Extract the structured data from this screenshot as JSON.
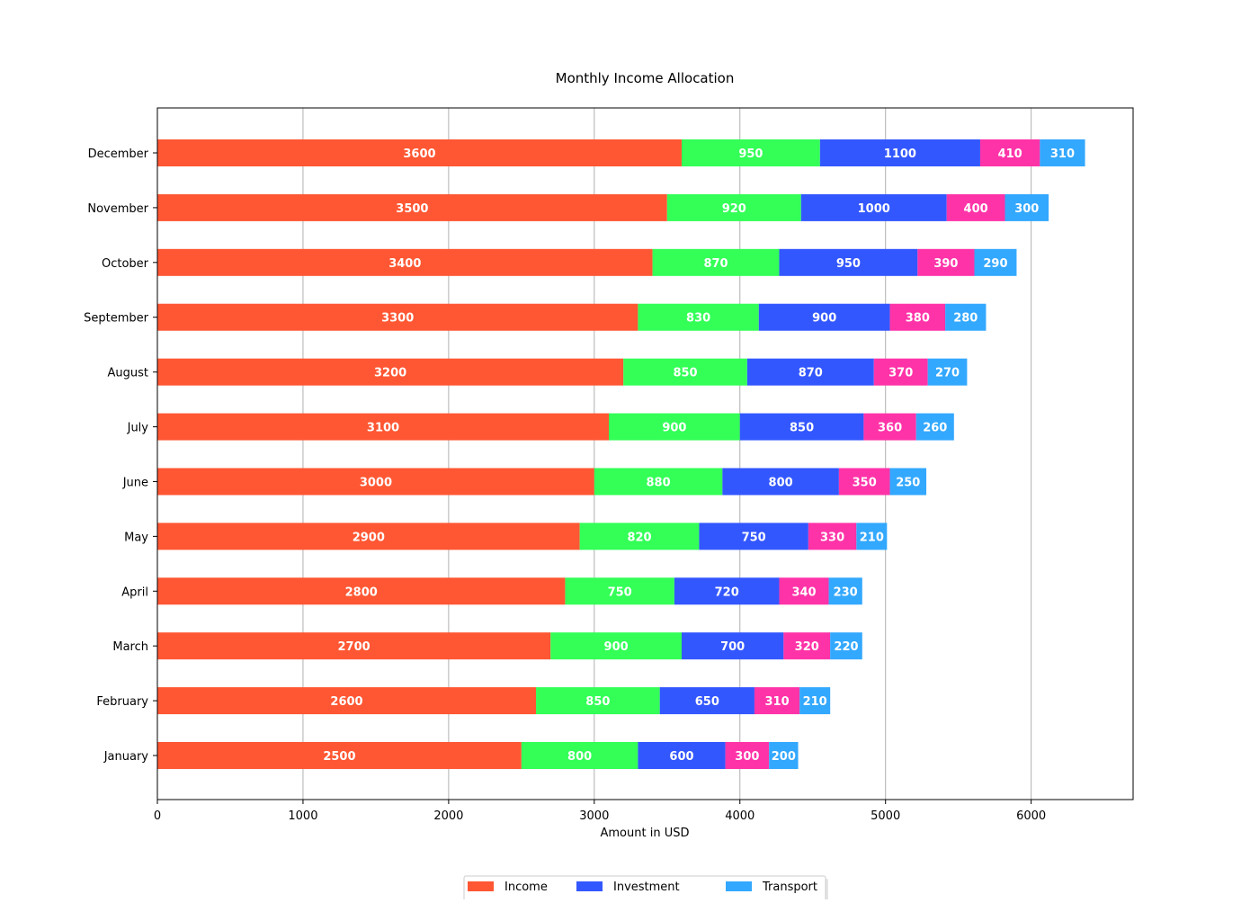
{
  "chart_data": {
    "type": "bar",
    "orientation": "horizontal",
    "stacked": true,
    "title": "Monthly Income Allocation",
    "xlabel": "Amount in USD",
    "ylabel": "",
    "xlim": [
      0,
      6700
    ],
    "x_ticks": [
      0,
      1000,
      2000,
      3000,
      4000,
      5000,
      6000
    ],
    "grid": "vertical",
    "legend_placement": "bottom-center",
    "categories": [
      "January",
      "February",
      "March",
      "April",
      "May",
      "June",
      "July",
      "August",
      "September",
      "October",
      "November",
      "December"
    ],
    "series": [
      {
        "name": "Income",
        "color": "#ff5733",
        "values": [
          2500,
          2600,
          2700,
          2800,
          2900,
          3000,
          3100,
          3200,
          3300,
          3400,
          3500,
          3600
        ]
      },
      {
        "name": "",
        "color": "#33ff57",
        "values": [
          800,
          850,
          900,
          750,
          820,
          880,
          900,
          850,
          830,
          870,
          920,
          950
        ]
      },
      {
        "name": "Investment",
        "color": "#3357ff",
        "values": [
          600,
          650,
          700,
          720,
          750,
          800,
          850,
          870,
          900,
          950,
          1000,
          1100
        ]
      },
      {
        "name": "",
        "color": "#ff33a8",
        "values": [
          300,
          310,
          320,
          340,
          330,
          350,
          360,
          370,
          380,
          390,
          400,
          410
        ]
      },
      {
        "name": "Transport",
        "color": "#33a8ff",
        "values": [
          200,
          210,
          220,
          230,
          210,
          250,
          260,
          270,
          280,
          290,
          300,
          310
        ]
      }
    ],
    "legend_entries": [
      "Income",
      "Investment",
      "Transport"
    ]
  }
}
